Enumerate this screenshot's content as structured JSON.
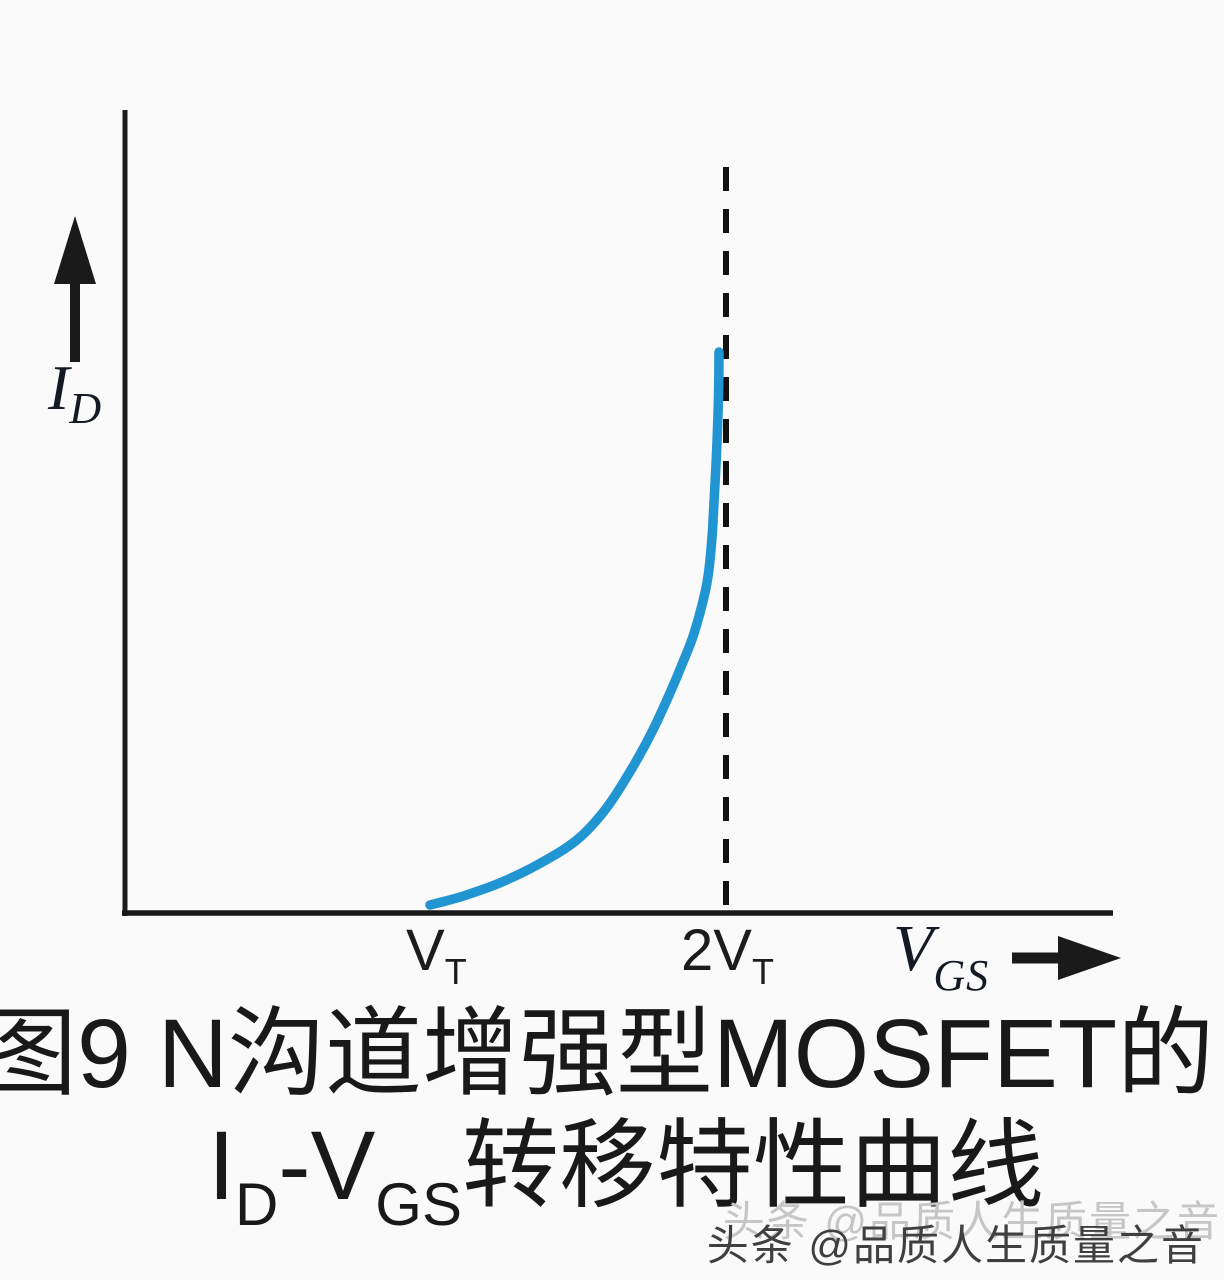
{
  "colors": {
    "background": "#fbfafa",
    "axis": "#1a1a1a",
    "curve": "#2095d2",
    "dashed_line": "#111111",
    "watermark": "#3f3f3f"
  },
  "chart_data": {
    "type": "line",
    "title": "",
    "xlabel": "V_GS",
    "ylabel": "I_D",
    "grid": false,
    "legend": false,
    "x_axis_label": {
      "main": "V",
      "sub": "GS"
    },
    "y_axis_label": {
      "main": "I",
      "sub": "D"
    },
    "x_ticks": [
      {
        "main": "V",
        "sub": "T",
        "value_in_VT_units": 1
      },
      {
        "main": "2V",
        "sub": "T",
        "value_in_VT_units": 2
      }
    ],
    "reference_line": {
      "x_in_VT_units": 2,
      "style": "dashed",
      "color": "#111111"
    },
    "axes_style": {
      "y_arrow": "up",
      "x_arrow": "right"
    },
    "series": [
      {
        "name": "ID-VGS transfer characteristic (N-channel enhancement MOSFET)",
        "color": "#2095d2",
        "x_units": "V_GS normalized: 0 = V_T, 1 = 2V_T",
        "y_units": "I_D normalized 0-1",
        "points": [
          [
            0.0,
            0.0
          ],
          [
            0.06,
            0.008
          ],
          [
            0.12,
            0.017
          ],
          [
            0.242,
            0.04
          ],
          [
            0.38,
            0.075
          ],
          [
            0.509,
            0.118
          ],
          [
            0.61,
            0.175
          ],
          [
            0.702,
            0.25
          ],
          [
            0.77,
            0.315
          ],
          [
            0.83,
            0.383
          ],
          [
            0.88,
            0.445
          ],
          [
            0.917,
            0.497
          ],
          [
            0.958,
            0.582
          ],
          [
            0.975,
            0.66
          ],
          [
            0.983,
            0.732
          ],
          [
            0.99,
            0.8
          ],
          [
            0.996,
            0.877
          ],
          [
            0.999,
            0.94
          ],
          [
            1.0,
            1.0
          ]
        ]
      }
    ]
  },
  "caption": {
    "line1": "图9 N沟道增强型MOSFET的",
    "line2": {
      "i_main": "I",
      "i_sub": "D",
      "dash": "-",
      "v_main": "V",
      "v_sub": "GS",
      "tail": "转移特性曲线"
    }
  },
  "watermark": {
    "text": "头条 @品质人生质量之音"
  }
}
